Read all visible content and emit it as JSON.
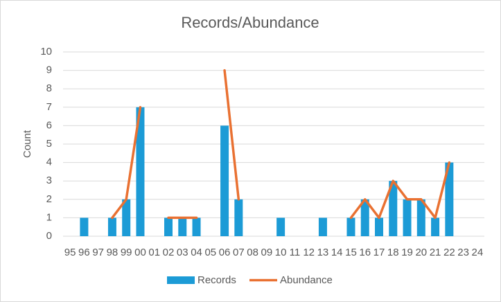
{
  "chart_data": {
    "type": "bar-line",
    "title": "Records/Abundance",
    "y_label": "Count",
    "categories": [
      "95",
      "96",
      "97",
      "98",
      "99",
      "00",
      "01",
      "02",
      "03",
      "04",
      "05",
      "06",
      "07",
      "08",
      "09",
      "10",
      "11",
      "12",
      "13",
      "14",
      "15",
      "16",
      "17",
      "18",
      "19",
      "20",
      "21",
      "22",
      "23",
      "24"
    ],
    "series": [
      {
        "name": "Records",
        "type": "bar",
        "color": "#1c9bd6",
        "values": [
          null,
          1,
          null,
          1,
          2,
          7,
          null,
          1,
          1,
          1,
          null,
          6,
          2,
          null,
          null,
          1,
          null,
          null,
          1,
          null,
          1,
          2,
          1,
          3,
          2,
          2,
          1,
          4,
          null,
          null
        ]
      },
      {
        "name": "Abundance",
        "type": "line",
        "color": "#e97132",
        "values": [
          null,
          null,
          null,
          1,
          2,
          7,
          null,
          1,
          1,
          1,
          null,
          9,
          2,
          null,
          null,
          null,
          null,
          null,
          null,
          null,
          1,
          2,
          1,
          3,
          2,
          2,
          1,
          4,
          null,
          null
        ]
      }
    ],
    "ylim": [
      0,
      10
    ],
    "yticks": [
      0,
      1,
      2,
      3,
      4,
      5,
      6,
      7,
      8,
      9,
      10
    ],
    "grid": true,
    "legend": "bottom"
  }
}
